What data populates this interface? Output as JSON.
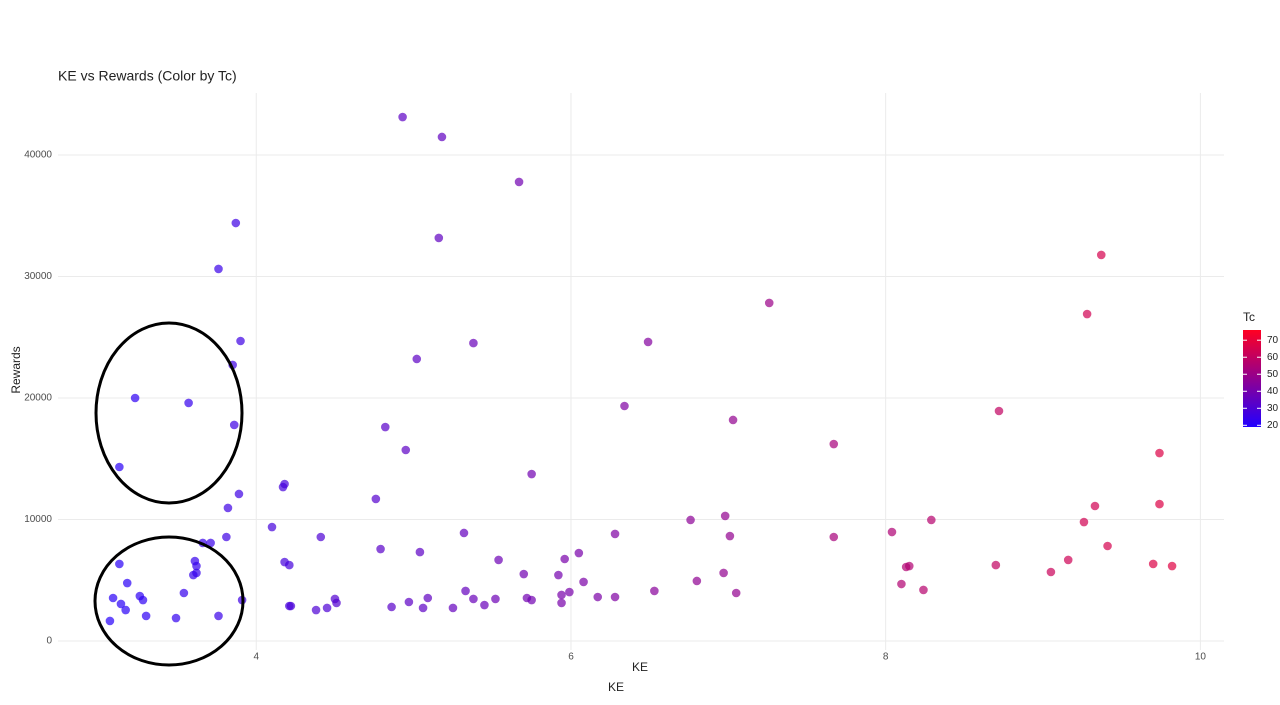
{
  "chart_data": {
    "type": "scatter",
    "title": "KE vs Rewards (Color by Tc)",
    "x_label": "KE",
    "annotation": "KE",
    "y_label": "Rewards",
    "color_label": "Tc",
    "x": [
      3.07,
      3.09,
      3.13,
      3.14,
      3.13,
      3.17,
      3.18,
      3.23,
      3.26,
      3.28,
      3.3,
      3.49,
      3.54,
      3.57,
      3.6,
      3.61,
      3.62,
      3.62,
      3.66,
      3.71,
      3.76,
      3.76,
      3.81,
      3.82,
      3.85,
      3.86,
      3.87,
      3.89,
      3.9,
      3.91,
      4.1,
      4.17,
      4.18,
      4.18,
      4.21,
      4.21,
      4.22,
      4.38,
      4.41,
      4.45,
      4.5,
      4.51,
      4.76,
      4.79,
      4.82,
      4.86,
      4.93,
      4.95,
      4.97,
      5.02,
      5.04,
      5.06,
      5.09,
      5.18,
      5.16,
      5.25,
      5.32,
      5.33,
      5.38,
      5.38,
      5.45,
      5.52,
      5.54,
      5.67,
      5.7,
      5.72,
      5.75,
      5.75,
      5.92,
      5.94,
      5.94,
      5.96,
      5.99,
      6.05,
      6.08,
      6.17,
      6.28,
      6.28,
      6.34,
      6.49,
      6.53,
      6.76,
      6.8,
      6.97,
      6.98,
      7.01,
      7.03,
      7.05,
      7.26,
      7.67,
      7.67,
      8.04,
      8.1,
      8.13,
      8.15,
      8.24,
      8.29,
      8.7,
      8.72,
      9.05,
      9.16,
      9.26,
      9.28,
      9.33,
      9.37,
      9.41,
      9.7,
      9.74,
      9.74,
      9.82
    ],
    "y": [
      1650,
      3540,
      6340,
      3050,
      14320,
      2550,
      4770,
      20000,
      3700,
      3370,
      2060,
      1890,
      3950,
      19590,
      5430,
      6580,
      6170,
      5600,
      8070,
      8070,
      2060,
      30620,
      8560,
      10950,
      22720,
      17780,
      34400,
      12100,
      24690,
      3370,
      9380,
      12670,
      12920,
      6500,
      6250,
      2880,
      2880,
      2550,
      8560,
      2720,
      3460,
      3130,
      11690,
      7570,
      17610,
      2800,
      43120,
      15720,
      3210,
      23210,
      7320,
      2720,
      3540,
      41480,
      33170,
      2720,
      8890,
      4120,
      3460,
      24520,
      2960,
      3460,
      6670,
      37780,
      5510,
      3540,
      3370,
      13740,
      5430,
      3790,
      3130,
      6750,
      4030,
      7240,
      4860,
      3620,
      3620,
      8810,
      19340,
      24610,
      4120,
      9960,
      4940,
      5600,
      10290,
      8640,
      18190,
      3950,
      27820,
      8560,
      16210,
      8970,
      4690,
      6090,
      6170,
      4200,
      9960,
      6250,
      18930,
      5680,
      6670,
      9790,
      26910,
      11110,
      31770,
      7820,
      6340,
      15470,
      11270,
      6170
    ],
    "color_values": [
      20,
      21,
      21,
      21,
      21,
      21,
      21,
      22,
      22,
      22,
      22,
      23,
      24,
      24,
      24,
      24,
      24,
      24,
      25,
      25,
      25,
      25,
      26,
      26,
      26,
      26,
      26,
      26,
      26,
      26,
      28,
      28,
      28,
      28,
      28,
      28,
      29,
      30,
      30,
      30,
      31,
      31,
      32,
      33,
      33,
      33,
      34,
      34,
      34,
      34,
      34,
      34,
      35,
      35,
      35,
      36,
      36,
      36,
      37,
      37,
      37,
      38,
      38,
      39,
      39,
      39,
      39,
      39,
      40,
      41,
      41,
      41,
      41,
      41,
      42,
      42,
      43,
      43,
      43,
      44,
      45,
      46,
      47,
      48,
      48,
      48,
      48,
      48,
      50,
      53,
      53,
      55,
      56,
      56,
      56,
      57,
      57,
      60,
      60,
      62,
      63,
      64,
      64,
      64,
      65,
      65,
      67,
      67,
      67,
      68
    ],
    "xlim": [
      2.74,
      10.15
    ],
    "ylim": [
      -740,
      45100
    ],
    "xticks": [
      4,
      6,
      8,
      10
    ],
    "yticks": [
      0,
      10000,
      20000,
      30000,
      40000
    ],
    "colorlim": [
      19,
      76
    ],
    "colorticks": [
      20,
      30,
      40,
      50,
      60,
      70
    ],
    "color_low": "#2200ff",
    "color_high": "#ff0022",
    "grid": true
  }
}
